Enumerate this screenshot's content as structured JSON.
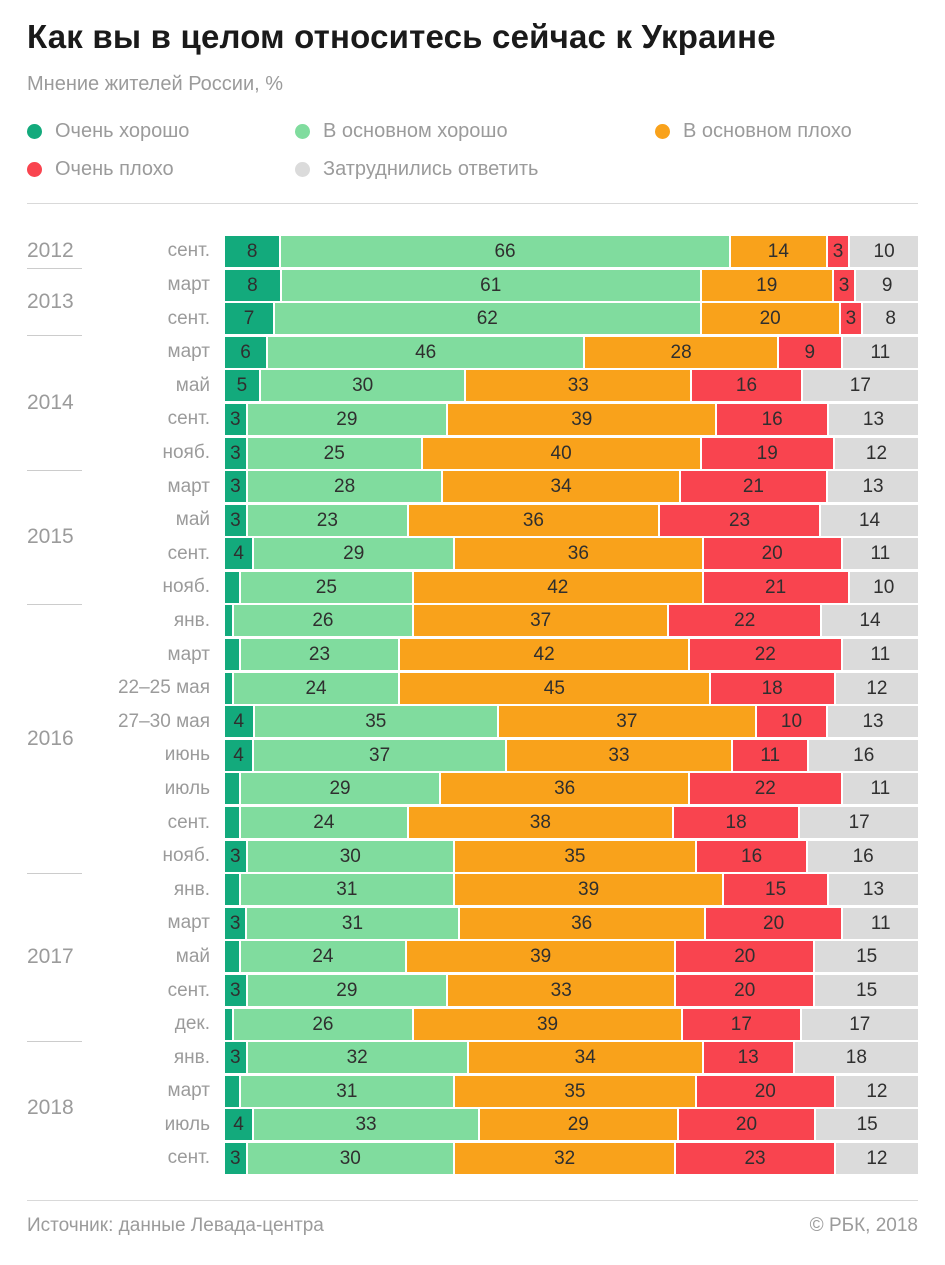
{
  "title": "Как вы в целом относитесь сейчас к Украине",
  "subtitle": "Мнение жителей России, %",
  "legend": [
    {
      "key": "very_good",
      "label": "Очень хорошо",
      "color": "#13aa7c"
    },
    {
      "key": "mostly_good",
      "label": "В основном хорошо",
      "color": "#80dc9e"
    },
    {
      "key": "mostly_bad",
      "label": "В основном плохо",
      "color": "#f9a21b"
    },
    {
      "key": "very_bad",
      "label": "Очень плохо",
      "color": "#f9444f"
    },
    {
      "key": "no_answer",
      "label": "Затруднились ответить",
      "color": "#dbdbdb"
    }
  ],
  "footer": {
    "source": "Источник: данные Левада-центра",
    "copyright": "© РБК, 2018"
  },
  "chart_data": {
    "type": "bar",
    "stacked": true,
    "orientation": "horizontal",
    "unit": "%",
    "label_min": 3,
    "series_names": [
      "Очень хорошо",
      "В основном хорошо",
      "В основном плохо",
      "Очень плохо",
      "Затруднились ответить"
    ],
    "groups": [
      {
        "year": "2012",
        "rows": [
          {
            "label": "сент.",
            "values": [
              8,
              66,
              14,
              3,
              10
            ]
          }
        ]
      },
      {
        "year": "2013",
        "rows": [
          {
            "label": "март",
            "values": [
              8,
              61,
              19,
              3,
              9
            ]
          },
          {
            "label": "сент.",
            "values": [
              7,
              62,
              20,
              3,
              8
            ]
          }
        ]
      },
      {
        "year": "2014",
        "rows": [
          {
            "label": "март",
            "values": [
              6,
              46,
              28,
              9,
              11
            ]
          },
          {
            "label": "май",
            "values": [
              5,
              30,
              33,
              16,
              17
            ]
          },
          {
            "label": "сент.",
            "values": [
              3,
              29,
              39,
              16,
              13
            ]
          },
          {
            "label": "нояб.",
            "values": [
              3,
              25,
              40,
              19,
              12
            ]
          }
        ]
      },
      {
        "year": "2015",
        "rows": [
          {
            "label": "март",
            "values": [
              3,
              28,
              34,
              21,
              13
            ]
          },
          {
            "label": "май",
            "values": [
              3,
              23,
              36,
              23,
              14
            ]
          },
          {
            "label": "сент.",
            "values": [
              4,
              29,
              36,
              20,
              11
            ]
          },
          {
            "label": "нояб.",
            "values": [
              2,
              25,
              42,
              21,
              10
            ]
          }
        ]
      },
      {
        "year": "2016",
        "rows": [
          {
            "label": "янв.",
            "values": [
              1,
              26,
              37,
              22,
              14
            ]
          },
          {
            "label": "март",
            "values": [
              2,
              23,
              42,
              22,
              11
            ]
          },
          {
            "label": "22–25 мая",
            "values": [
              1,
              24,
              45,
              18,
              12
            ]
          },
          {
            "label": "27–30 мая",
            "values": [
              4,
              35,
              37,
              10,
              13
            ]
          },
          {
            "label": "июнь",
            "values": [
              4,
              37,
              33,
              11,
              16
            ]
          },
          {
            "label": "июль",
            "values": [
              2,
              29,
              36,
              22,
              11
            ]
          },
          {
            "label": "сент.",
            "values": [
              2,
              24,
              38,
              18,
              17
            ]
          },
          {
            "label": "нояб.",
            "values": [
              3,
              30,
              35,
              16,
              16
            ]
          }
        ]
      },
      {
        "year": "2017",
        "rows": [
          {
            "label": "янв.",
            "values": [
              2,
              31,
              39,
              15,
              13
            ]
          },
          {
            "label": "март",
            "values": [
              3,
              31,
              36,
              20,
              11
            ]
          },
          {
            "label": "май",
            "values": [
              2,
              24,
              39,
              20,
              15
            ]
          },
          {
            "label": "сент.",
            "values": [
              3,
              29,
              33,
              20,
              15
            ]
          },
          {
            "label": "дек.",
            "values": [
              1,
              26,
              39,
              17,
              17
            ]
          }
        ]
      },
      {
        "year": "2018",
        "rows": [
          {
            "label": "янв.",
            "values": [
              3,
              32,
              34,
              13,
              18
            ]
          },
          {
            "label": "март",
            "values": [
              2,
              31,
              35,
              20,
              12
            ]
          },
          {
            "label": "июль",
            "values": [
              4,
              33,
              29,
              20,
              15
            ]
          },
          {
            "label": "сент.",
            "values": [
              3,
              30,
              32,
              23,
              12
            ]
          }
        ]
      }
    ]
  }
}
